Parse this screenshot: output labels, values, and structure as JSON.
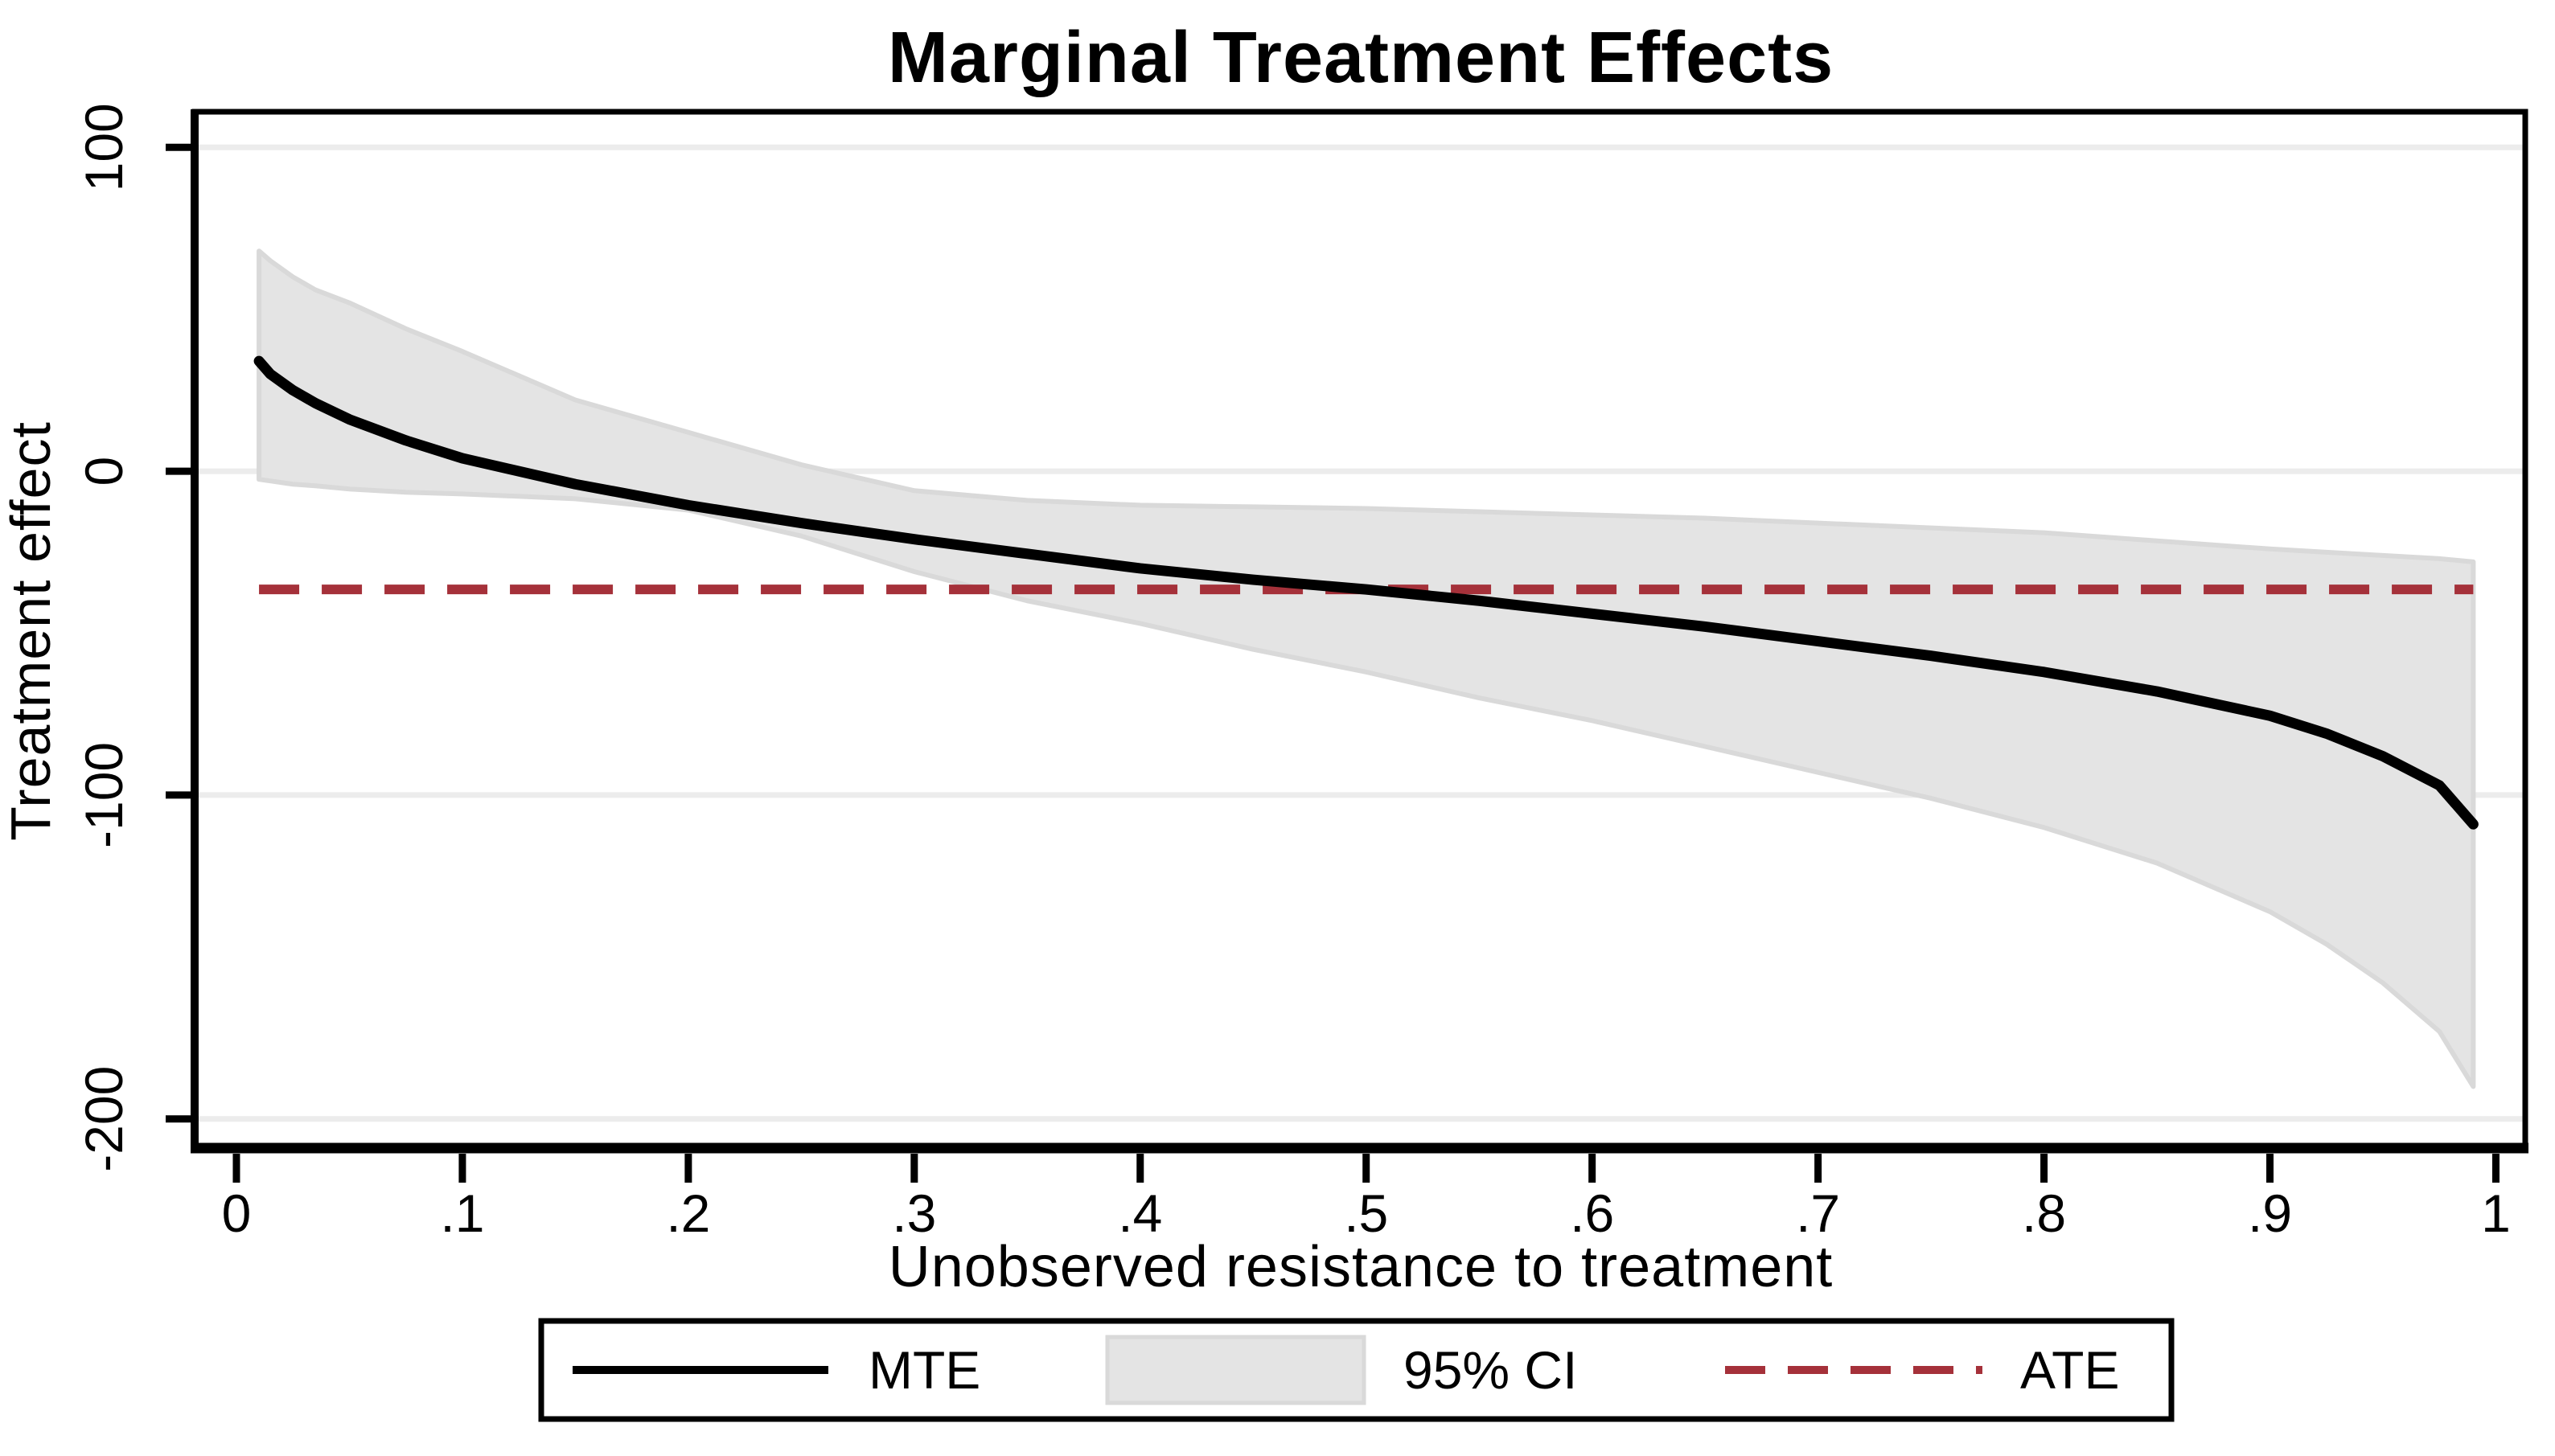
{
  "title": "Marginal Treatment Effects",
  "x_axis": {
    "label": "Unobserved resistance to treatment",
    "ticks": [
      {
        "value": 0,
        "label": "0"
      },
      {
        "value": 0.1,
        "label": ".1"
      },
      {
        "value": 0.2,
        "label": ".2"
      },
      {
        "value": 0.3,
        "label": ".3"
      },
      {
        "value": 0.4,
        "label": ".4"
      },
      {
        "value": 0.5,
        "label": ".5"
      },
      {
        "value": 0.6,
        "label": ".6"
      },
      {
        "value": 0.7,
        "label": ".7"
      },
      {
        "value": 0.8,
        "label": ".8"
      },
      {
        "value": 0.9,
        "label": ".9"
      },
      {
        "value": 1,
        "label": "1"
      }
    ]
  },
  "y_axis": {
    "label": "Treatment effect",
    "ticks": [
      {
        "value": 100,
        "label": "100"
      },
      {
        "value": 0,
        "label": "0"
      },
      {
        "value": -100,
        "label": "-100"
      },
      {
        "value": -200,
        "label": "-200"
      }
    ]
  },
  "legend": {
    "items": [
      {
        "swatch": "solid-line",
        "label": "MTE"
      },
      {
        "swatch": "area-box",
        "label": "95% CI"
      },
      {
        "swatch": "dashed-line",
        "label": "ATE"
      }
    ]
  },
  "colors": {
    "mte_line": "#000000",
    "ci_fill": "#e4e4e4",
    "ci_edge": "#d9d9d9",
    "ate_line": "#a5313a",
    "grid_line": "#ececec",
    "frame": "#000000",
    "background": "#ffffff"
  },
  "chart_data": {
    "type": "line",
    "title": "Marginal Treatment Effects",
    "xlabel": "Unobserved resistance to treatment",
    "ylabel": "Treatment effect",
    "xlim": [
      -0.0185,
      1.013
    ],
    "ylim": [
      -209,
      111
    ],
    "x_ticks": [
      0,
      0.1,
      0.2,
      0.3,
      0.4,
      0.5,
      0.6,
      0.7,
      0.8,
      0.9,
      1
    ],
    "y_ticks": [
      100,
      0,
      -100,
      -200
    ],
    "grid": "horizontal",
    "legend_position": "bottom",
    "x": [
      0.01,
      0.015,
      0.025,
      0.035,
      0.05,
      0.075,
      0.1,
      0.15,
      0.2,
      0.25,
      0.3,
      0.35,
      0.4,
      0.45,
      0.5,
      0.55,
      0.6,
      0.65,
      0.7,
      0.75,
      0.8,
      0.85,
      0.9,
      0.925,
      0.95,
      0.975,
      0.99
    ],
    "series": [
      {
        "name": "MTE",
        "style": "solid",
        "color": "#000000",
        "values": [
          34,
          30,
          25,
          21,
          16,
          9.5,
          4,
          -4,
          -10.5,
          -16,
          -21,
          -25.5,
          -30,
          -33.5,
          -36.5,
          -40,
          -44,
          -48,
          -52.5,
          -57,
          -62,
          -68,
          -75.5,
          -81,
          -88,
          -97,
          -109
        ]
      },
      {
        "name": "95% CI upper",
        "style": "band-upper",
        "color": "#e4e4e4",
        "values": [
          68,
          65,
          60,
          56,
          52,
          44,
          37,
          22,
          12,
          2,
          -6,
          -9,
          -10.5,
          -11,
          -11.5,
          -12.5,
          -13.5,
          -14.5,
          -16,
          -17.5,
          -19,
          -21.5,
          -24,
          -25,
          -26,
          -27,
          -28
        ]
      },
      {
        "name": "95% CI lower",
        "style": "band-lower",
        "color": "#e4e4e4",
        "values": [
          -2.5,
          -3,
          -4,
          -4.5,
          -5.5,
          -6.5,
          -7,
          -8.5,
          -12,
          -20,
          -31,
          -40,
          -47,
          -55,
          -62,
          -70,
          -77,
          -85,
          -93,
          -101,
          -110,
          -121,
          -136,
          -146,
          -158,
          -173,
          -190
        ]
      },
      {
        "name": "ATE",
        "style": "dashed",
        "color": "#a5313a",
        "constant": -36.5,
        "x_range": [
          0.01,
          0.99
        ]
      }
    ]
  }
}
